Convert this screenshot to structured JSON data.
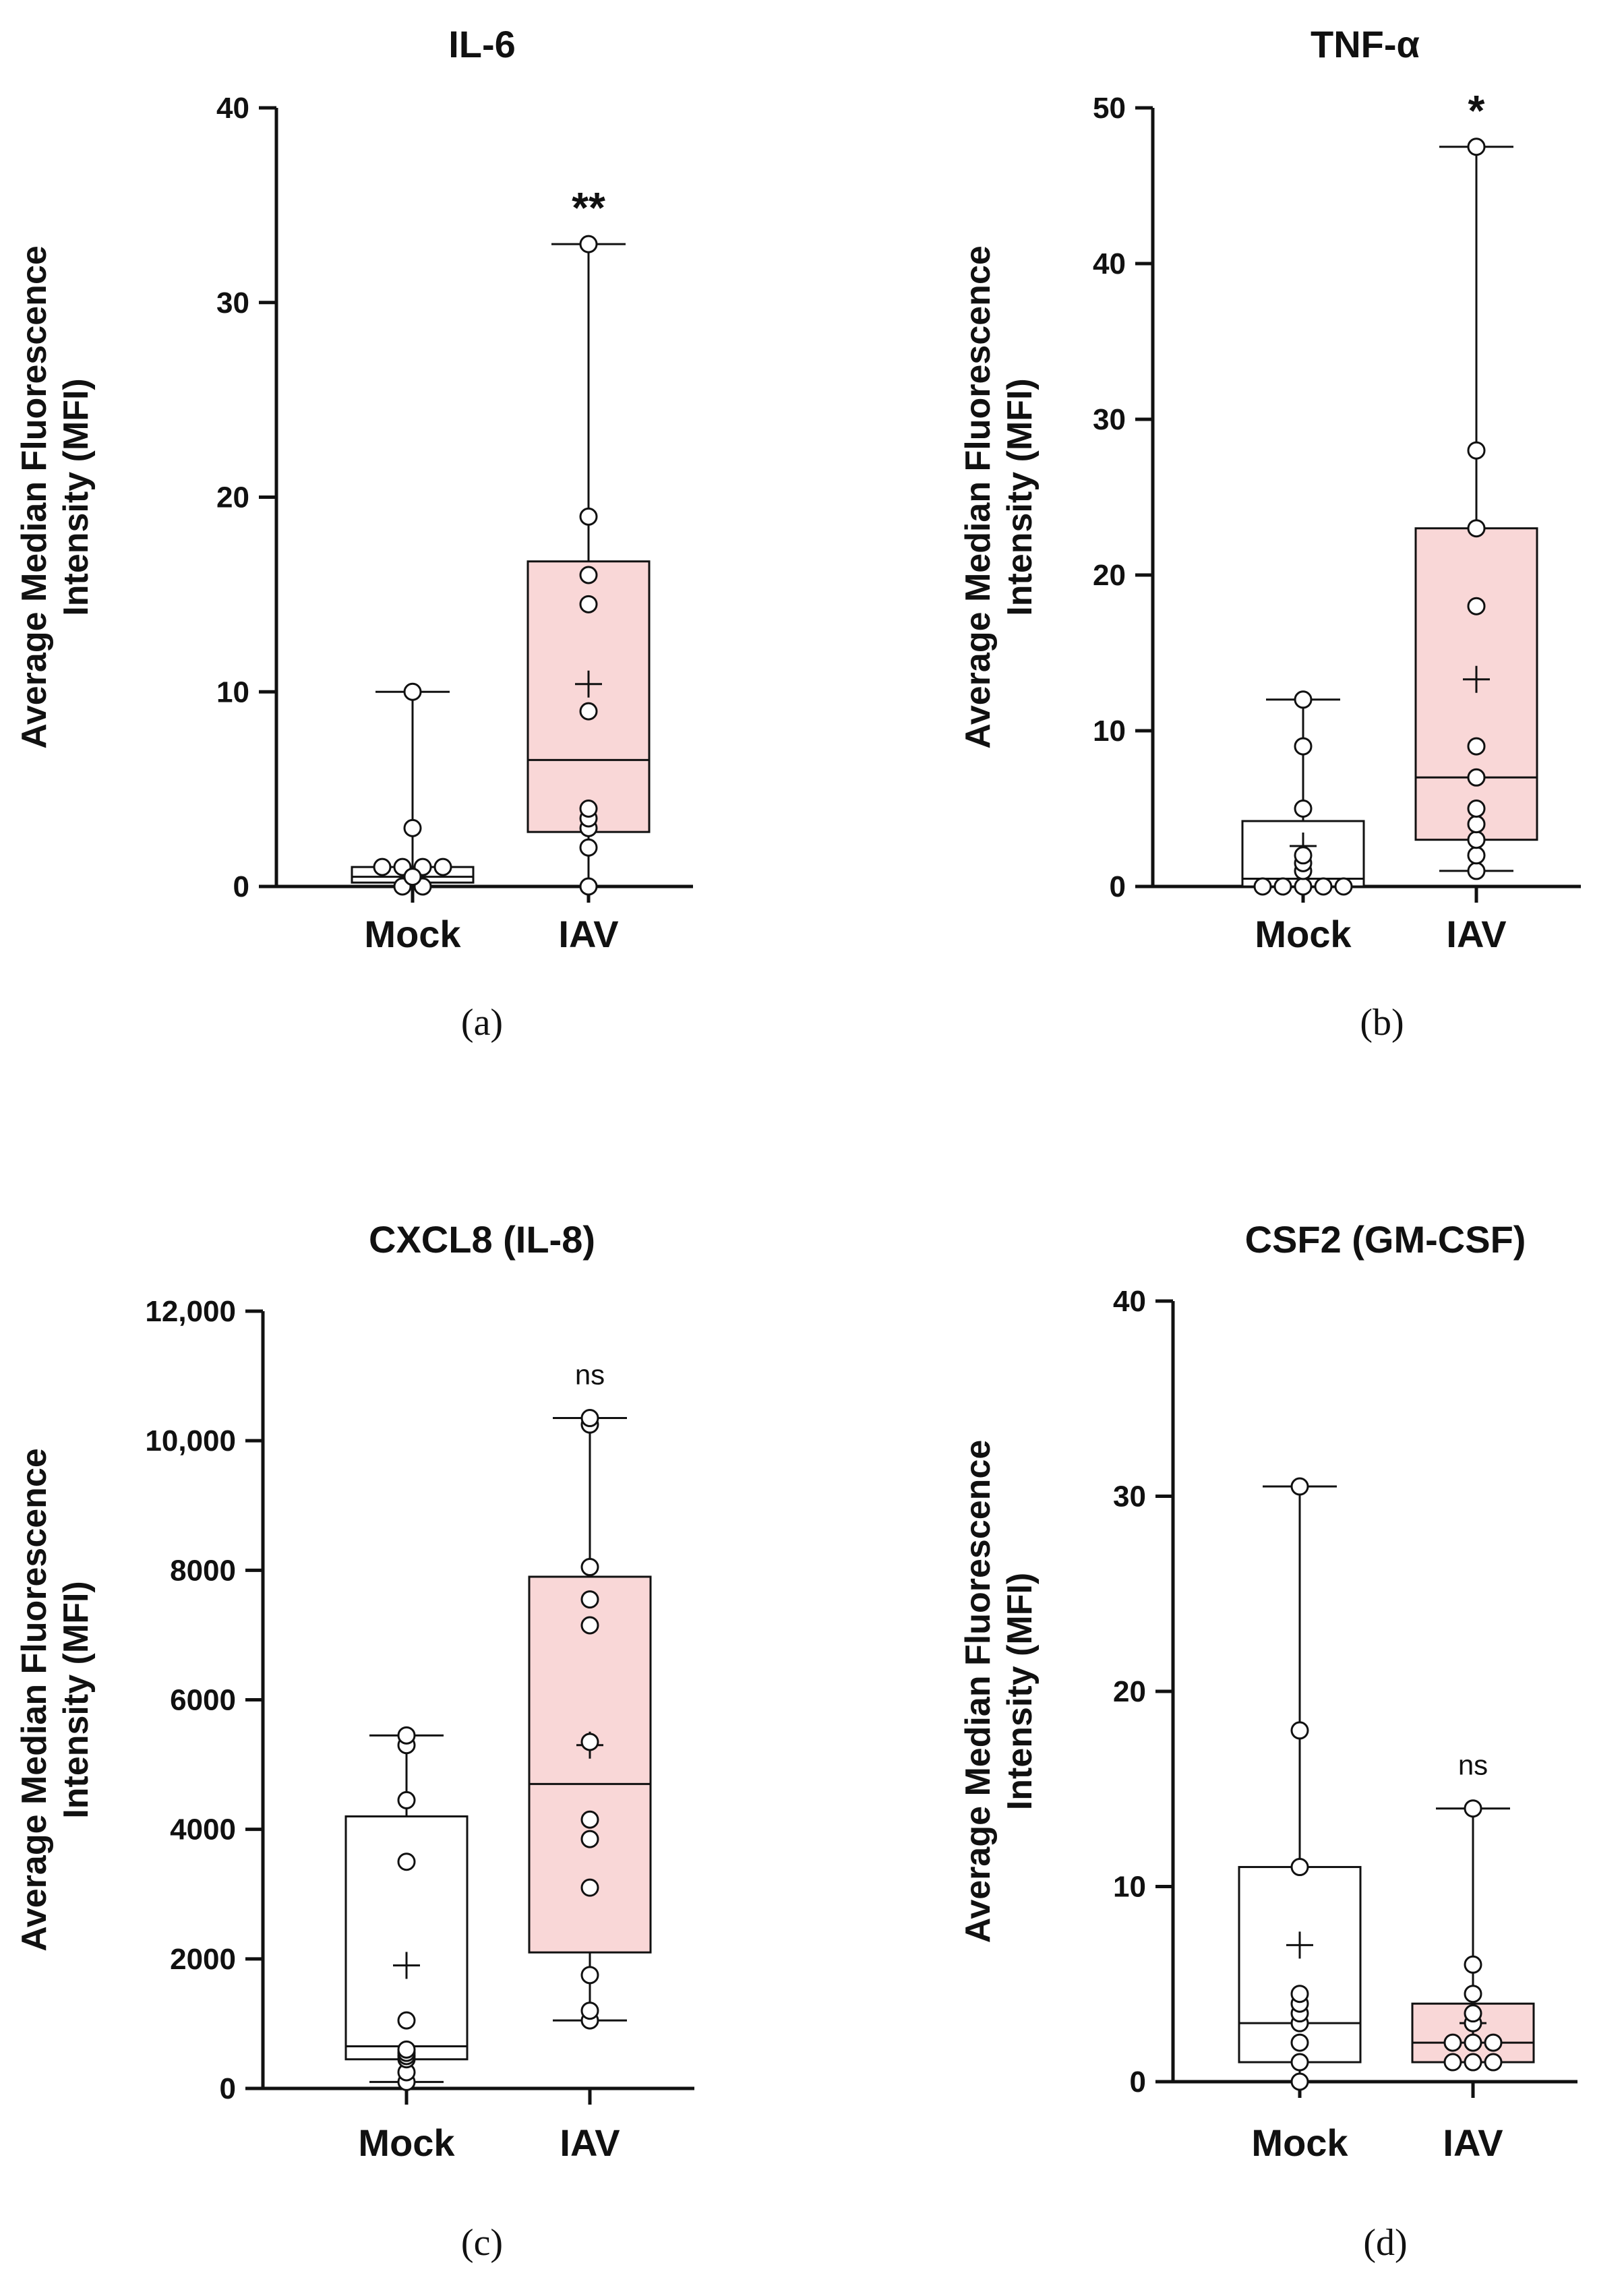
{
  "figure": {
    "ylabel_line1": "Average Median Fluorescence",
    "ylabel_line2": "Intensity (MFI)",
    "colors": {
      "mock_fill": "#ffffff",
      "iav_fill": "#f9d7d7",
      "stroke": "#111111"
    }
  },
  "chart_data": [
    {
      "type": "box",
      "panel": "(a)",
      "title": "IL-6",
      "ylim": [
        0,
        40
      ],
      "yticks": [
        0,
        10,
        20,
        30,
        40
      ],
      "ytick_labels": [
        "0",
        "10",
        "20",
        "30",
        "40"
      ],
      "categories": [
        "Mock",
        "IAV"
      ],
      "groups": [
        {
          "name": "Mock",
          "min": 0,
          "q1": 0.2,
          "median": 0.5,
          "q3": 1.0,
          "max": 10,
          "mean": 0.8,
          "points": [
            0,
            0,
            1,
            1,
            1,
            1,
            0.5,
            3,
            10
          ],
          "significance": ""
        },
        {
          "name": "IAV",
          "min": 0,
          "q1": 2.8,
          "median": 6.5,
          "q3": 16.7,
          "max": 33,
          "mean": 10.4,
          "points": [
            0,
            2,
            3,
            3.5,
            4,
            9,
            14.5,
            16,
            19,
            33
          ],
          "significance": "**"
        }
      ]
    },
    {
      "type": "box",
      "panel": "(b)",
      "title": "TNF-α",
      "ylim": [
        0,
        50
      ],
      "yticks": [
        0,
        10,
        20,
        30,
        40,
        50
      ],
      "ytick_labels": [
        "0",
        "10",
        "20",
        "30",
        "40",
        "50"
      ],
      "categories": [
        "Mock",
        "IAV"
      ],
      "groups": [
        {
          "name": "Mock",
          "min": 0,
          "q1": 0,
          "median": 0.5,
          "q3": 4.2,
          "max": 12,
          "mean": 2.6,
          "points": [
            0,
            0,
            0,
            0,
            0,
            1,
            1.5,
            2,
            5,
            9,
            12
          ],
          "significance": ""
        },
        {
          "name": "IAV",
          "min": 1,
          "q1": 3,
          "median": 7,
          "q3": 23,
          "max": 47.5,
          "mean": 13.3,
          "points": [
            1,
            2,
            3,
            4,
            5,
            7,
            9,
            18,
            23,
            28,
            47.5
          ],
          "significance": "*"
        }
      ]
    },
    {
      "type": "box",
      "panel": "(c)",
      "title": "CXCL8 (IL-8)",
      "ylim": [
        0,
        12000
      ],
      "yticks": [
        0,
        2000,
        4000,
        6000,
        8000,
        10000,
        12000
      ],
      "ytick_labels": [
        "0",
        "2000",
        "4000",
        "6000",
        "8000",
        "10,000",
        "12,000"
      ],
      "categories": [
        "Mock",
        "IAV"
      ],
      "groups": [
        {
          "name": "Mock",
          "min": 100,
          "q1": 450,
          "median": 650,
          "q3": 4200,
          "max": 5450,
          "mean": 1900,
          "points": [
            100,
            250,
            450,
            500,
            550,
            600,
            1050,
            3500,
            4450,
            5300,
            5450
          ],
          "significance": ""
        },
        {
          "name": "IAV",
          "min": 1050,
          "q1": 2100,
          "median": 4700,
          "q3": 7900,
          "max": 10350,
          "mean": 5300,
          "points": [
            1050,
            1200,
            1750,
            3100,
            3850,
            4150,
            5350,
            7150,
            7550,
            8050,
            10250,
            10350
          ],
          "significance": "ns"
        }
      ]
    },
    {
      "type": "box",
      "panel": "(d)",
      "title": "CSF2 (GM-CSF)",
      "ylim": [
        0,
        40
      ],
      "yticks": [
        0,
        10,
        20,
        30,
        40
      ],
      "ytick_labels": [
        "0",
        "10",
        "20",
        "30",
        "40"
      ],
      "categories": [
        "Mock",
        "IAV"
      ],
      "groups": [
        {
          "name": "Mock",
          "min": 0,
          "q1": 1,
          "median": 3,
          "q3": 11,
          "max": 30.5,
          "mean": 7,
          "points": [
            0,
            1,
            2,
            3,
            3.5,
            4,
            4.5,
            11,
            18,
            30.5
          ],
          "significance": ""
        },
        {
          "name": "IAV",
          "min": 1,
          "q1": 1,
          "median": 2,
          "q3": 4,
          "max": 14,
          "mean": 3,
          "points": [
            1,
            1,
            1,
            2,
            2,
            2,
            3,
            3.5,
            4.5,
            6,
            14
          ],
          "significance": "ns"
        }
      ]
    }
  ]
}
